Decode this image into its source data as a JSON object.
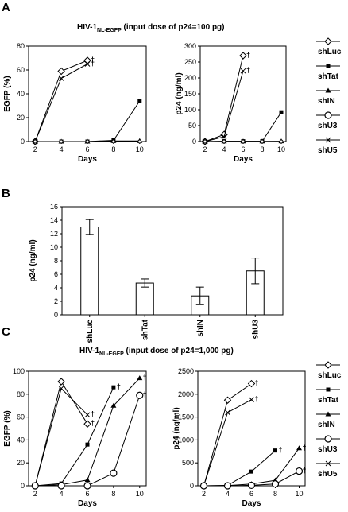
{
  "panels": [
    {
      "letter": "A",
      "title": "HIV-1",
      "title_sub": "NL-EGFP",
      "title_rest": " (input dose of p24=100 pg)"
    },
    {
      "letter": "B"
    },
    {
      "letter": "C",
      "title": "HIV-1",
      "title_sub": "NL-EGFP",
      "title_rest": " (input dose of p24=1,000 pg)"
    }
  ],
  "legend": [
    "shLuc",
    "shTat",
    "shIN",
    "shU3",
    "shU5"
  ],
  "legend_C": [
    "shLuc",
    "shTat",
    "shIN",
    "shU3",
    "shU5"
  ],
  "chart_data": [
    {
      "id": "A-left",
      "type": "line",
      "xlabel": "Days",
      "ylabel": "EGFP (%)",
      "xlim": [
        1.5,
        10.5
      ],
      "ylim": [
        0,
        80
      ],
      "xticks": [
        2,
        4,
        6,
        8,
        10
      ],
      "yticks": [
        0,
        20,
        40,
        60,
        80
      ],
      "x": [
        2,
        4,
        6,
        8,
        10
      ],
      "series": [
        {
          "name": "shLuc",
          "marker": "diamond",
          "values": [
            0,
            59,
            68,
            null,
            null
          ],
          "dagger": [
            6
          ]
        },
        {
          "name": "shU5",
          "marker": "x",
          "values": [
            0,
            53,
            65,
            null,
            null
          ],
          "dagger": [
            6
          ]
        },
        {
          "name": "shTat",
          "marker": "square",
          "values": [
            0,
            0,
            0,
            1,
            34
          ]
        },
        {
          "name": "shIN",
          "marker": "triangle",
          "values": [
            0,
            0,
            0,
            0.5,
            0.5
          ]
        },
        {
          "name": "shU3",
          "marker": "circle-small",
          "values": [
            0,
            0,
            0,
            0,
            0
          ]
        }
      ]
    },
    {
      "id": "A-right",
      "type": "line",
      "xlabel": "Days",
      "ylabel": "p24 (ng/ml)",
      "xlim": [
        1.5,
        10.5
      ],
      "ylim": [
        0,
        300
      ],
      "xticks": [
        2,
        4,
        6,
        8,
        10
      ],
      "yticks": [
        0,
        50,
        100,
        150,
        200,
        250,
        300
      ],
      "x": [
        2,
        4,
        6,
        8,
        10
      ],
      "series": [
        {
          "name": "shLuc",
          "marker": "diamond",
          "values": [
            0,
            22,
            270,
            null,
            null
          ],
          "dagger": [
            6
          ]
        },
        {
          "name": "shU5",
          "marker": "x",
          "values": [
            0,
            15,
            222,
            null,
            null
          ],
          "dagger": [
            6
          ]
        },
        {
          "name": "shTat",
          "marker": "square",
          "values": [
            0,
            1,
            1,
            1,
            92
          ]
        },
        {
          "name": "shIN",
          "marker": "triangle",
          "values": [
            0,
            0.5,
            0.5,
            0.5,
            1
          ]
        },
        {
          "name": "shU3",
          "marker": "circle-small",
          "values": [
            0,
            0,
            0,
            0,
            0
          ]
        }
      ]
    },
    {
      "id": "B",
      "type": "bar",
      "ylabel": "p24 (ng/ml)",
      "categories": [
        "shLuc",
        "shTat",
        "shIN",
        "shU3"
      ],
      "values": [
        13.0,
        4.7,
        2.8,
        6.5
      ],
      "errors": [
        1.1,
        0.6,
        1.3,
        1.9
      ],
      "ylim": [
        0,
        16
      ],
      "yticks": [
        0,
        2,
        4,
        6,
        8,
        10,
        12,
        14,
        16
      ]
    },
    {
      "id": "C-left",
      "type": "line",
      "xlabel": "Days",
      "ylabel": "EGFP (%)",
      "xlim": [
        1.5,
        10.5
      ],
      "ylim": [
        0,
        100
      ],
      "xticks": [
        2,
        4,
        6,
        8,
        10
      ],
      "yticks": [
        0,
        20,
        40,
        60,
        80,
        100
      ],
      "x": [
        2,
        4,
        6,
        8,
        10
      ],
      "series": [
        {
          "name": "shLuc",
          "marker": "diamond",
          "values": [
            0,
            91,
            54,
            null,
            null
          ],
          "dagger": [
            6
          ]
        },
        {
          "name": "shU5",
          "marker": "x",
          "values": [
            0,
            85,
            62,
            null,
            null
          ],
          "dagger": [
            6
          ]
        },
        {
          "name": "shTat",
          "marker": "square",
          "values": [
            0,
            2,
            36,
            86,
            null
          ],
          "dagger": [
            8
          ]
        },
        {
          "name": "shIN",
          "marker": "triangle",
          "values": [
            0,
            1,
            5,
            70,
            94
          ],
          "dagger": [
            10
          ]
        },
        {
          "name": "shU3",
          "marker": "circle",
          "values": [
            0,
            0,
            0,
            11,
            79
          ],
          "dagger": [
            10
          ]
        }
      ]
    },
    {
      "id": "C-right",
      "type": "line",
      "xlabel": "Days",
      "ylabel": "p24 (ng/ml)",
      "xlim": [
        1.5,
        10.5
      ],
      "ylim": [
        0,
        2500
      ],
      "xticks": [
        2,
        4,
        6,
        8,
        10
      ],
      "yticks": [
        0,
        500,
        1000,
        1500,
        2000,
        2500
      ],
      "x": [
        2,
        4,
        6,
        8,
        10
      ],
      "series": [
        {
          "name": "shLuc",
          "marker": "diamond",
          "values": [
            0,
            1870,
            2230,
            null,
            null
          ],
          "dagger": [
            6
          ]
        },
        {
          "name": "shU5",
          "marker": "x",
          "values": [
            0,
            1600,
            1880,
            null,
            null
          ],
          "dagger": [
            6
          ]
        },
        {
          "name": "shTat",
          "marker": "square",
          "values": [
            0,
            10,
            310,
            770,
            null
          ],
          "dagger": [
            8
          ]
        },
        {
          "name": "shIN",
          "marker": "triangle",
          "values": [
            0,
            5,
            40,
            120,
            820
          ],
          "dagger": [
            10
          ]
        },
        {
          "name": "shU3",
          "marker": "circle",
          "values": [
            0,
            0,
            10,
            40,
            320
          ],
          "dagger": [
            10
          ]
        }
      ]
    }
  ]
}
